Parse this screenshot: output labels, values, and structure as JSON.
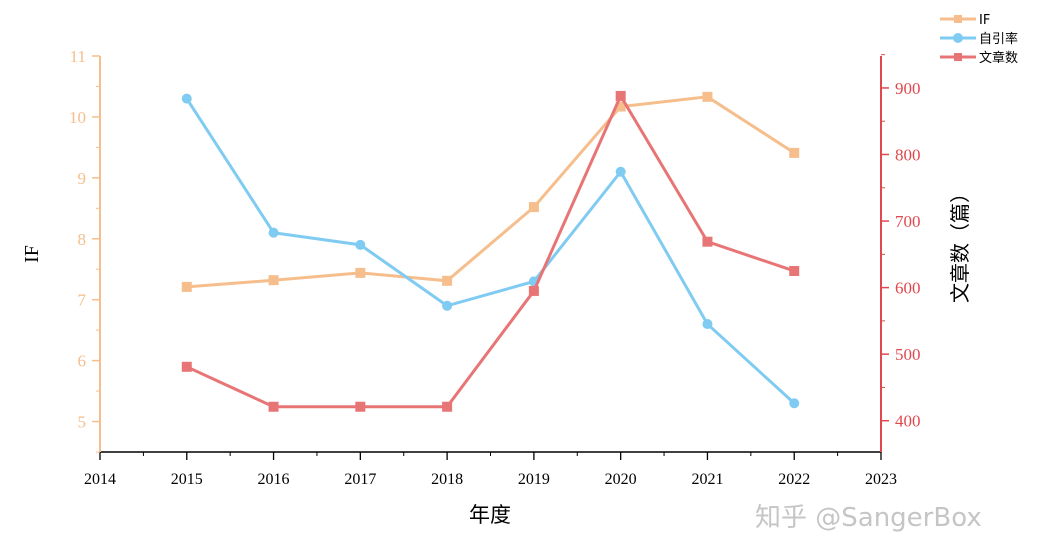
{
  "chart_data": {
    "type": "line",
    "x": [
      2015,
      2016,
      2017,
      2018,
      2019,
      2020,
      2021,
      2022
    ],
    "xlabel": "年度",
    "xlim": [
      2014,
      2023
    ],
    "xticks": [
      2014,
      2015,
      2016,
      2017,
      2018,
      2019,
      2020,
      2021,
      2022,
      2023
    ],
    "ylabel_left": "IF",
    "ylim_left": [
      4.5,
      11
    ],
    "yticks_left": [
      5,
      6,
      7,
      8,
      9,
      10,
      11
    ],
    "ylabel_right": "文章数（篇）",
    "ylim_right": [
      353,
      948
    ],
    "yticks_right": [
      400,
      500,
      600,
      700,
      800,
      900
    ],
    "legend_position": "top-right",
    "grid": false,
    "series": [
      {
        "name": "IF",
        "axis": "left",
        "marker": "square",
        "color": "#F5BE8C",
        "values": [
          7.21,
          7.32,
          7.44,
          7.31,
          8.52,
          10.17,
          10.33,
          9.41
        ]
      },
      {
        "name": "自引率",
        "axis": "left",
        "marker": "circle",
        "color": "#7FCBF2",
        "values": [
          10.3,
          8.1,
          7.9,
          6.9,
          7.3,
          9.1,
          6.6,
          5.3
        ]
      },
      {
        "name": "文章数",
        "axis": "right",
        "marker": "square",
        "color": "#E87575",
        "values": [
          481,
          421,
          421,
          421,
          595,
          888,
          669,
          625
        ]
      }
    ],
    "left_axis_color": "#F5BE8C",
    "right_axis_color": "#E0484E"
  },
  "watermark": "知乎 @SangerBox"
}
